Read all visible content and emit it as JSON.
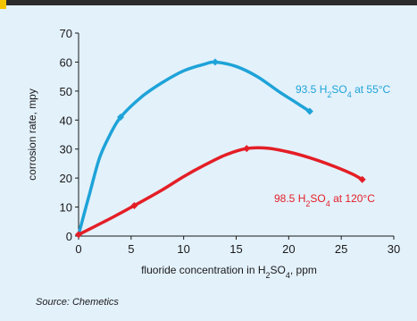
{
  "source": "Source: Chemetics",
  "chart_data": {
    "type": "line",
    "xlabel": {
      "pre": "fluoride concentration in H",
      "sub": "2",
      "mid": "SO",
      "sub2": "4",
      "post": ", ppm"
    },
    "ylabel": "corrosion rate, mpy",
    "xlim": [
      0,
      30
    ],
    "ylim": [
      0,
      70
    ],
    "xticks": [
      "0",
      "5",
      "10",
      "15",
      "20",
      "25",
      "30"
    ],
    "yticks": [
      "0",
      "10",
      "20",
      "30",
      "40",
      "50",
      "60",
      "70"
    ],
    "grid": false,
    "series": [
      {
        "label": {
          "pre": "93.5 H",
          "sub": "2",
          "mid": "SO",
          "sub2": "4",
          "post": " at 55°C"
        },
        "color": "#1ea3d8",
        "curve": [
          [
            0,
            0.5
          ],
          [
            1,
            14
          ],
          [
            2,
            27
          ],
          [
            3,
            35
          ],
          [
            4,
            41
          ],
          [
            6,
            48
          ],
          [
            8,
            53
          ],
          [
            10,
            57
          ],
          [
            12,
            59.3
          ],
          [
            13,
            60
          ],
          [
            15,
            58.5
          ],
          [
            17,
            55
          ],
          [
            19,
            50
          ],
          [
            20.5,
            46.5
          ],
          [
            22,
            43
          ]
        ],
        "markers": [
          [
            0,
            0.5
          ],
          [
            4,
            41
          ],
          [
            13,
            60
          ],
          [
            22,
            43
          ]
        ]
      },
      {
        "label": {
          "pre": "98.5 H",
          "sub": "2",
          "mid": "SO",
          "sub2": "4",
          "post": " at 120°C"
        },
        "color": "#e41e26",
        "curve": [
          [
            0,
            0.5
          ],
          [
            3,
            6
          ],
          [
            5.3,
            10.5
          ],
          [
            8,
            16
          ],
          [
            10,
            20.5
          ],
          [
            12,
            24.5
          ],
          [
            14,
            28
          ],
          [
            16,
            30.2
          ],
          [
            18,
            30.3
          ],
          [
            20,
            29
          ],
          [
            22,
            27
          ],
          [
            24,
            24.5
          ],
          [
            26,
            21.5
          ],
          [
            27,
            19.5
          ]
        ],
        "markers": [
          [
            0,
            0.5
          ],
          [
            5.3,
            10.5
          ],
          [
            16,
            30.2
          ],
          [
            27,
            19.5
          ]
        ]
      }
    ]
  }
}
